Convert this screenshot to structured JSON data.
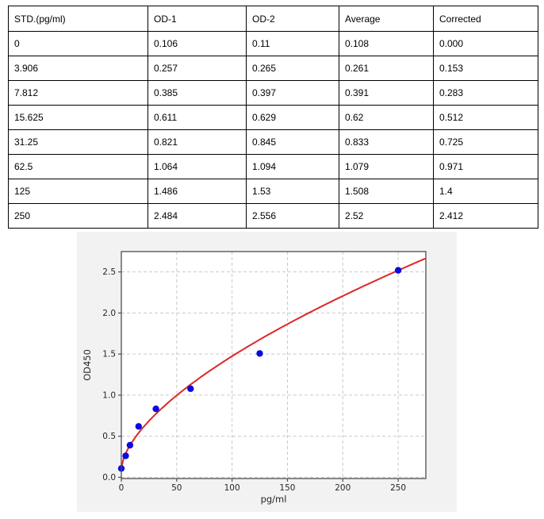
{
  "table": {
    "columns": [
      "STD.(pg/ml)",
      "OD-1",
      "OD-2",
      "Average",
      "Corrected"
    ],
    "rows": [
      [
        "0",
        "0.106",
        "0.11",
        "0.108",
        "0.000"
      ],
      [
        "3.906",
        "0.257",
        "0.265",
        "0.261",
        "0.153"
      ],
      [
        "7.812",
        "0.385",
        "0.397",
        "0.391",
        "0.283"
      ],
      [
        "15.625",
        "0.611",
        "0.629",
        "0.62",
        "0.512"
      ],
      [
        "31.25",
        "0.821",
        "0.845",
        "0.833",
        "0.725"
      ],
      [
        "62.5",
        "1.064",
        "1.094",
        "1.079",
        "0.971"
      ],
      [
        "125",
        "1.486",
        "1.53",
        "1.508",
        "1.4"
      ],
      [
        "250",
        "2.484",
        "2.556",
        "2.52",
        "2.412"
      ]
    ]
  },
  "chart_data": {
    "type": "scatter",
    "title": "",
    "xlabel": "pg/ml",
    "ylabel": "OD450",
    "xlim": [
      0,
      275
    ],
    "ylim": [
      -0.015,
      2.748
    ],
    "grid": true,
    "legend": "none",
    "xticks": {
      "values": [
        0,
        50,
        100,
        150,
        200,
        250
      ],
      "labels": [
        "0",
        "50",
        "100",
        "150",
        "200",
        "250"
      ]
    },
    "yticks": {
      "values": [
        0,
        0.5,
        1.0,
        1.5,
        2.0,
        2.5
      ],
      "labels": [
        "0.0",
        "0.5",
        "1.0",
        "1.5",
        "2.0",
        "2.5"
      ]
    },
    "colors": {
      "figure_bg": "#f2f2f2",
      "plot_bg": "#ffffff",
      "grid": "#c9c9c9",
      "spine": "#4d4d4d",
      "points": "#0b0bdf",
      "curve": "#de2626"
    },
    "series": [
      {
        "name": "standard-points",
        "type": "scatter",
        "color": "#0b0bdf",
        "x": [
          0,
          3.906,
          7.812,
          15.625,
          31.25,
          62.5,
          125,
          250
        ],
        "y": [
          0.108,
          0.261,
          0.391,
          0.62,
          0.833,
          1.079,
          1.508,
          2.52
        ]
      },
      {
        "name": "fitted-curve",
        "type": "line",
        "color": "#de2626",
        "fit": {
          "form": "y = c + a*x^b",
          "a": 0.0786,
          "b": 0.62,
          "c": 0.108,
          "x_range": [
            0,
            275
          ]
        }
      }
    ]
  }
}
